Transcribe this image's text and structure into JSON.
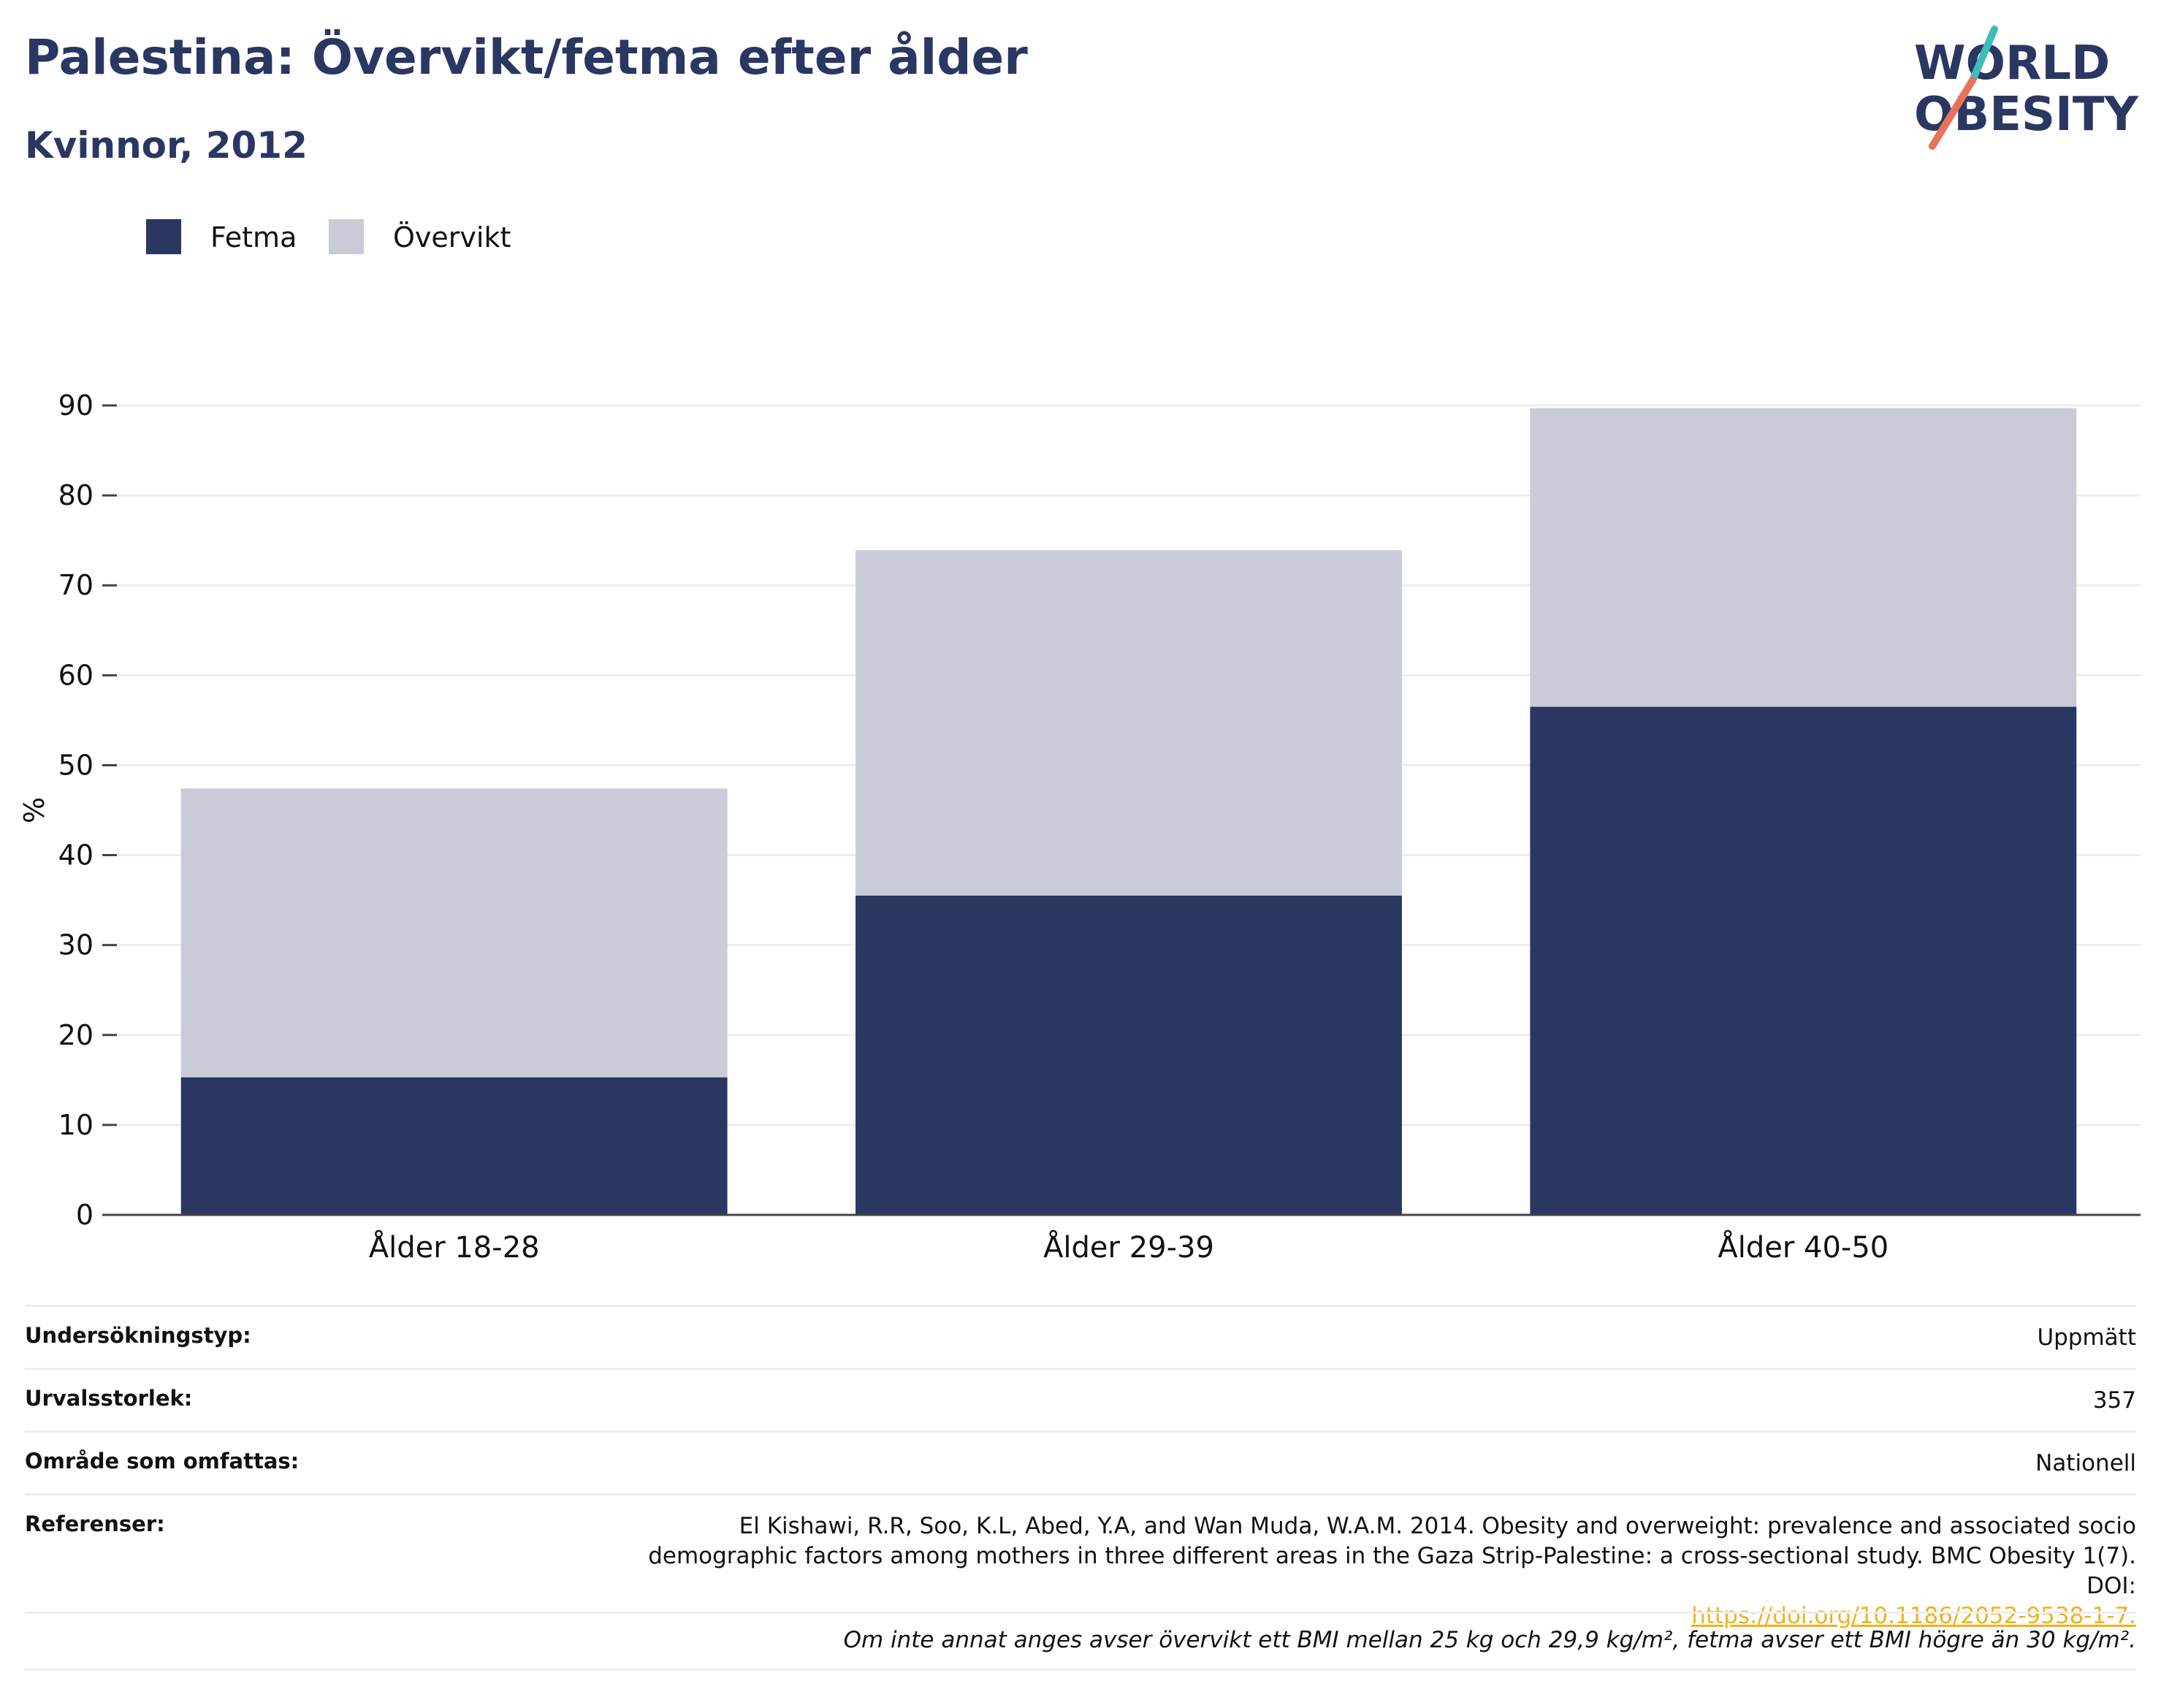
{
  "header": {
    "title": "Palestina: Övervikt/fetma efter ålder",
    "subtitle": "Kvinnor, 2012"
  },
  "logo": {
    "line1": "WORLD",
    "line2": "OBESITY",
    "teal": "#3dbdb8",
    "coral": "#e9735a",
    "navy": "#2a3763"
  },
  "chart_data": {
    "type": "bar",
    "stacked": true,
    "categories": [
      "Ålder 18-28",
      "Ålder 29-39",
      "Ålder 40-50"
    ],
    "series": [
      {
        "name": "Fetma",
        "values": [
          15.3,
          35.5,
          56.5
        ],
        "color": "#2a3763"
      },
      {
        "name": "Övervikt",
        "values": [
          32.1,
          38.4,
          33.2
        ],
        "color": "#c9cbd7"
      }
    ],
    "ylabel": "%",
    "ylim": [
      0,
      90
    ],
    "yticks": [
      0,
      10,
      20,
      30,
      40,
      50,
      60,
      70,
      80,
      90
    ],
    "grid": true,
    "legend": "top-left"
  },
  "meta": {
    "survey_type_label": "Undersökningstyp:",
    "survey_type_value": "Uppmätt",
    "sample_size_label": "Urvalsstorlek:",
    "sample_size_value": "357",
    "area_label": "Område som omfattas:",
    "area_value": "Nationell",
    "references_label": "Referenser:",
    "references_text": "El Kishawi, R.R, Soo, K.L, Abed, Y.A, and Wan Muda, W.A.M. 2014. Obesity and overweight: prevalence and associated socio demographic factors among mothers in three different areas in the Gaza Strip-Palestine: a cross-sectional study. BMC Obesity 1(7). DOI:",
    "references_link": "https://doi.org/10.1186/2052-9538-1-7."
  },
  "footnote": "Om inte annat anges avser övervikt ett BMI mellan 25 kg och 29,9 kg/m², fetma avser ett BMI högre än 30 kg/m²."
}
